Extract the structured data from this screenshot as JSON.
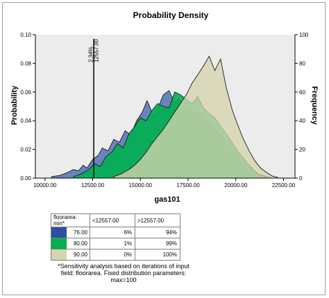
{
  "chart_data": {
    "type": "area",
    "title": "Probability Density",
    "xlabel": "gas101",
    "ylabel": "Probability",
    "y2label": "Frequency",
    "xlim": [
      9500,
      23100
    ],
    "ylim": [
      0,
      0.1
    ],
    "y2lim": [
      0,
      100
    ],
    "x_ticks": [
      "10000.00",
      "12500.00",
      "15000.00",
      "17500.00",
      "20000.00",
      "22500.00"
    ],
    "y_ticks": [
      "0.00",
      "0.02",
      "0.04",
      "0.06",
      "0.08",
      "0.10"
    ],
    "y2_ticks": [
      "0",
      "20",
      "40",
      "60",
      "80",
      "100"
    ],
    "grid": false,
    "marker": {
      "x": 12557,
      "label_pct": "2.34%",
      "label_val": "12557.00"
    },
    "series": [
      {
        "name": "76.00",
        "color": "#5b78b8",
        "x": [
          10350,
          10800,
          11200,
          11500,
          11750,
          12000,
          12200,
          12500,
          12800,
          13000,
          13300,
          13600,
          13900,
          14200,
          14500,
          14800,
          15100,
          15350,
          15700,
          15950,
          16200,
          16500,
          16800,
          17000,
          17300,
          17600,
          17900,
          18200,
          18500,
          18800,
          19100,
          19400,
          19700,
          20000,
          20300,
          20600,
          20900,
          21200,
          21500,
          21800
        ],
        "y": [
          0.001,
          0.002,
          0.004,
          0.006,
          0.005,
          0.009,
          0.007,
          0.013,
          0.016,
          0.021,
          0.019,
          0.027,
          0.025,
          0.033,
          0.03,
          0.04,
          0.046,
          0.054,
          0.043,
          0.05,
          0.058,
          0.061,
          0.052,
          0.056,
          0.049,
          0.051,
          0.045,
          0.046,
          0.04,
          0.036,
          0.032,
          0.028,
          0.023,
          0.018,
          0.013,
          0.009,
          0.006,
          0.003,
          0.0015,
          0.0005
        ]
      },
      {
        "name": "80.00",
        "color": "#00b050",
        "x": [
          11500,
          11900,
          12300,
          12600,
          12900,
          13200,
          13500,
          13800,
          14100,
          14400,
          14700,
          15000,
          15300,
          15600,
          15900,
          16200,
          16500,
          16800,
          17100,
          17400,
          17700,
          18000,
          18300,
          18600,
          18900,
          19200,
          19500,
          19800,
          20100,
          20400,
          20700,
          21000,
          21300,
          21600
        ],
        "y": [
          0.001,
          0.003,
          0.006,
          0.01,
          0.008,
          0.015,
          0.018,
          0.024,
          0.021,
          0.031,
          0.036,
          0.042,
          0.04,
          0.047,
          0.052,
          0.05,
          0.049,
          0.06,
          0.058,
          0.055,
          0.052,
          0.057,
          0.049,
          0.045,
          0.042,
          0.036,
          0.031,
          0.025,
          0.019,
          0.014,
          0.009,
          0.005,
          0.002,
          0.0005
        ]
      },
      {
        "name": "90.00",
        "color": "#d6d4ae",
        "x": [
          13600,
          14000,
          14400,
          14700,
          15000,
          15300,
          15600,
          15900,
          16200,
          16500,
          16800,
          17100,
          17400,
          17700,
          18000,
          18300,
          18600,
          18900,
          19200,
          19500,
          19800,
          20100,
          20400,
          20700,
          21000,
          21300,
          21600,
          21900,
          22200
        ],
        "y": [
          0.001,
          0.003,
          0.006,
          0.009,
          0.013,
          0.018,
          0.024,
          0.029,
          0.034,
          0.04,
          0.046,
          0.052,
          0.058,
          0.066,
          0.072,
          0.078,
          0.085,
          0.075,
          0.083,
          0.063,
          0.048,
          0.037,
          0.027,
          0.019,
          0.012,
          0.007,
          0.004,
          0.0015,
          0.0005
        ]
      }
    ],
    "table": {
      "header": [
        "floorarea: min*",
        "<12557.00",
        ">12557.00"
      ],
      "rows": [
        {
          "label": "76.00",
          "color": "#2f4fa0",
          "below": "6%",
          "above": "94%"
        },
        {
          "label": "80.00",
          "color": "#00b050",
          "below": "1%",
          "above": "99%"
        },
        {
          "label": "90.00",
          "color": "#d6d4ae",
          "below": "0%",
          "above": "100%"
        }
      ]
    },
    "note": "*Sensitivity analysis based on iterations of input field: floorarea. Fixed distribution parameters: max=100"
  }
}
